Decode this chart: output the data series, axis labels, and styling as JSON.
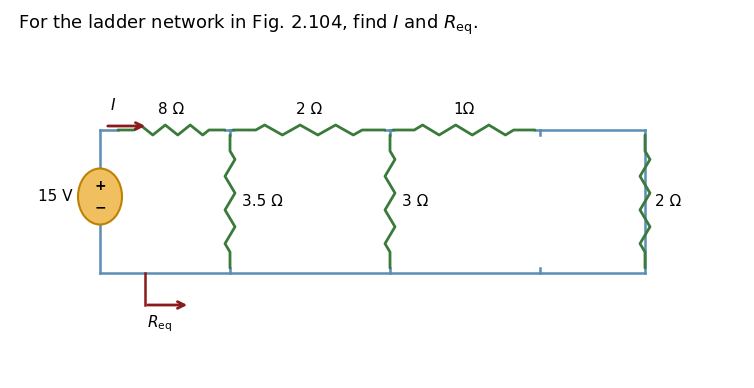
{
  "title": "For the ladder network in Fig. 2.104, find $I$ and $R_{\\mathrm{eq}}$.",
  "title_fontsize": 13,
  "bg_color": "#ffffff",
  "circuit_color": "#5b8db8",
  "resistor_color": "#3a7a3a",
  "arrow_color": "#8b1a1a",
  "source_fill": "#f0c060",
  "source_edge": "#c08000",
  "voltage_label": "15 V",
  "series_resistors": [
    "8 Ω",
    "2 Ω",
    "1Ω"
  ],
  "shunt_resistors": [
    "3.5 Ω",
    "3 Ω",
    "2 Ω"
  ],
  "current_label": "I",
  "req_label": "$R_{\\mathrm{eq}}$",
  "wire_lw": 1.8,
  "res_lw": 2.0,
  "res_amp": 5,
  "res_zigs": 6
}
